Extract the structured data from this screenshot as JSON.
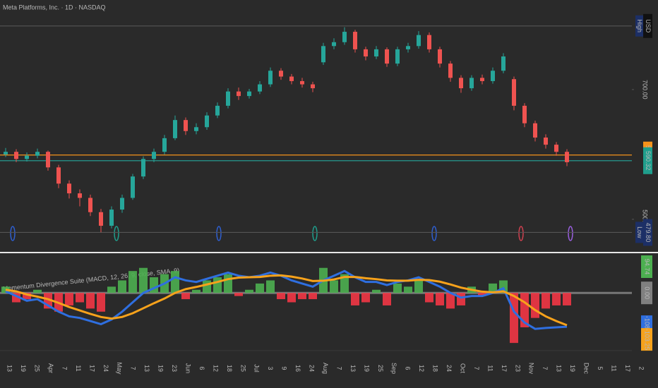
{
  "chart_data": [
    {
      "type": "candlestick",
      "title": "Meta Platforms, Inc. · 1D · NASDAQ",
      "currency": "USD",
      "up_color": "#26a69a",
      "down_color": "#ef5350",
      "open": [
        600,
        604,
        593,
        598,
        604,
        580,
        555,
        540,
        533,
        511,
        490,
        515,
        533,
        566,
        593,
        604,
        625,
        653,
        636,
        642,
        660,
        675,
        697,
        690,
        697,
        708,
        729,
        720,
        713,
        708,
        742,
        767,
        773,
        789,
        762,
        751,
        762,
        740,
        762,
        767,
        784,
        762,
        740,
        718,
        702,
        718,
        713,
        729,
        716,
        675,
        648,
        626,
        615,
        604
      ],
      "high": [
        610,
        608,
        603,
        609,
        606,
        584,
        560,
        546,
        538,
        516,
        520,
        538,
        570,
        597,
        609,
        630,
        660,
        657,
        648,
        665,
        680,
        702,
        703,
        701,
        713,
        734,
        733,
        724,
        718,
        712,
        772,
        779,
        796,
        792,
        766,
        767,
        765,
        766,
        772,
        790,
        788,
        766,
        744,
        722,
        722,
        723,
        734,
        756,
        720,
        679,
        652,
        631,
        619,
        608
      ],
      "low": [
        596,
        588,
        589,
        594,
        575,
        548,
        532,
        520,
        505,
        480,
        486,
        510,
        530,
        562,
        588,
        600,
        622,
        630,
        631,
        638,
        656,
        671,
        684,
        686,
        693,
        704,
        715,
        708,
        703,
        696,
        738,
        762,
        769,
        757,
        745,
        747,
        735,
        736,
        757,
        763,
        757,
        734,
        712,
        695,
        698,
        708,
        709,
        725,
        668,
        642,
        620,
        609,
        598,
        582
      ],
      "close": [
        604,
        593,
        598,
        604,
        580,
        555,
        540,
        533,
        511,
        490,
        515,
        533,
        566,
        593,
        604,
        625,
        653,
        636,
        642,
        660,
        675,
        697,
        690,
        697,
        708,
        729,
        720,
        713,
        708,
        702,
        767,
        773,
        789,
        762,
        751,
        762,
        740,
        762,
        767,
        784,
        762,
        740,
        718,
        702,
        718,
        713,
        729,
        751,
        675,
        648,
        626,
        615,
        604,
        588
      ],
      "ylim": [
        452,
        838
      ],
      "yticks": [
        {
          "value": 500,
          "label": "500.00"
        },
        {
          "value": 700,
          "label": "700.00"
        }
      ],
      "price_lines": [
        {
          "value": 798,
          "tag": "High",
          "line_color": "#555555",
          "box_color": "#1c2f66"
        },
        {
          "value": 599.05,
          "label": "599.05",
          "line_color": "#f7931a",
          "box_color": "#f7931a"
        },
        {
          "value": 590.32,
          "label": "590.32",
          "line_color": "#26a69a",
          "box_color": "#1f9e8c"
        },
        {
          "value": 479.8,
          "tag": "Low",
          "label": "479.80",
          "line_color": "#555555",
          "box_color": "#1c2f66"
        }
      ],
      "x_labels": [
        "13",
        "19",
        "25",
        "Apr",
        "7",
        "11",
        "17",
        "24",
        "May",
        "7",
        "13",
        "19",
        "23",
        "Jun",
        "6",
        "12",
        "18",
        "25",
        "Jul",
        "3",
        "9",
        "16",
        "24",
        "Aug",
        "7",
        "13",
        "19",
        "25",
        "Sep",
        "6",
        "12",
        "18",
        "24",
        "Oct",
        "7",
        "11",
        "17",
        "23",
        "Nov",
        "7",
        "13",
        "19",
        "Dec",
        "5",
        "11",
        "17",
        "2"
      ]
    },
    {
      "type": "indicator",
      "title": "Momentum Divergence Suite (MACD, 12, 26, 9, close, SMA, 9)",
      "pos_color": "#4caf50",
      "neg_color": "#f23645",
      "histogram": [
        20,
        -30,
        -20,
        10,
        -50,
        -60,
        -40,
        -30,
        -50,
        -60,
        20,
        40,
        70,
        80,
        50,
        60,
        70,
        -20,
        10,
        40,
        50,
        60,
        -10,
        10,
        30,
        40,
        -20,
        -30,
        -20,
        -20,
        80,
        40,
        60,
        -40,
        -30,
        10,
        -40,
        30,
        20,
        40,
        -30,
        -40,
        -50,
        -40,
        20,
        -10,
        30,
        40,
        -160,
        -110,
        -80,
        -50,
        -40,
        -40
      ],
      "series": [
        {
          "color": "#2f6fe0",
          "values": [
            5,
            -10,
            -25,
            -20,
            -40,
            -60,
            -75,
            -80,
            -90,
            -100,
            -85,
            -60,
            -30,
            0,
            15,
            30,
            50,
            40,
            35,
            45,
            55,
            65,
            55,
            50,
            55,
            65,
            55,
            40,
            30,
            20,
            40,
            55,
            70,
            50,
            35,
            35,
            25,
            35,
            40,
            50,
            35,
            20,
            0,
            -15,
            -10,
            -10,
            0,
            15,
            -60,
            -95,
            -115,
            -112,
            -110,
            -108.05
          ]
        },
        {
          "color": "#f7a21b",
          "values": [
            10,
            5,
            -5,
            -12,
            -20,
            -32,
            -45,
            -56,
            -67,
            -77,
            -82,
            -77,
            -65,
            -49,
            -33,
            -18,
            0,
            12,
            19,
            27,
            35,
            44,
            49,
            50,
            51,
            55,
            56,
            52,
            46,
            38,
            39,
            43,
            51,
            51,
            47,
            44,
            40,
            39,
            39,
            42,
            41,
            36,
            27,
            17,
            10,
            4,
            2,
            5,
            -10,
            -30,
            -55,
            -75,
            -90,
            -103.25
          ]
        }
      ],
      "ylim": [
        -180,
        120
      ],
      "value_tags": [
        {
          "value": 94.74,
          "label": "94.74",
          "color": "#4caf50"
        },
        {
          "value": 0,
          "label": "0.00",
          "color": "#808080"
        },
        {
          "value": -108.05,
          "label": "-108.05",
          "color": "#2f6fe0"
        },
        {
          "value": -103.25,
          "label": "-103.25",
          "color": "#f7a21b"
        }
      ]
    }
  ]
}
